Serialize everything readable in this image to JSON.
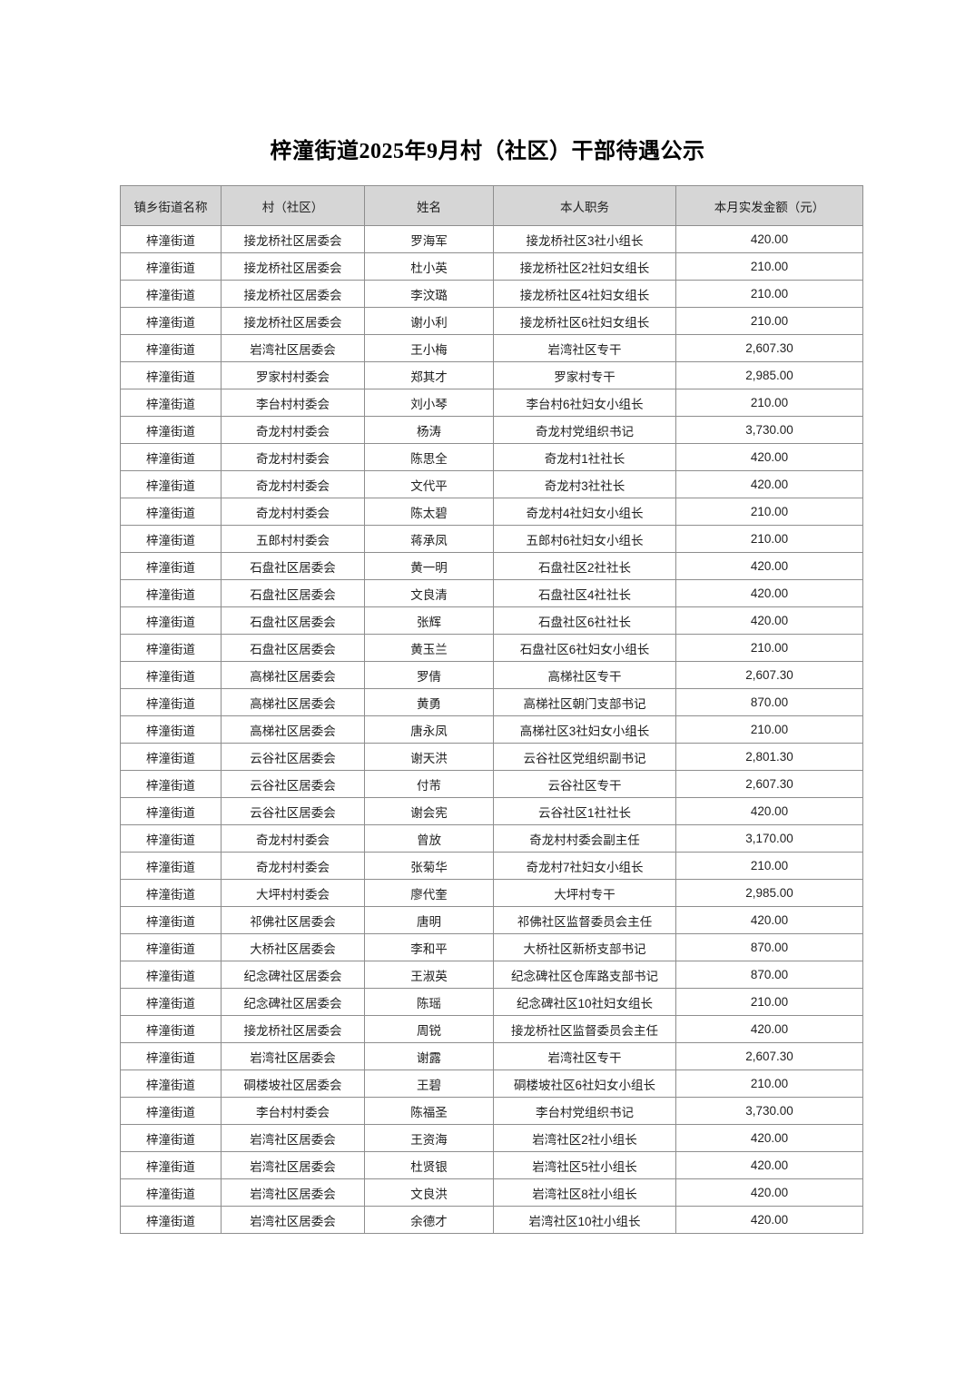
{
  "page": {
    "title": "梓潼街道2025年9月村（社区）干部待遇公示"
  },
  "colors": {
    "header_bg": "#d6d6d6",
    "border": "#8e8e8e",
    "text": "#1f1f1f",
    "page_bg": "#ffffff"
  },
  "table": {
    "headers": [
      "镇乡街道名称",
      "村（社区）",
      "姓名",
      "本人职务",
      "本月实发金额（元）"
    ],
    "rows": [
      [
        "梓潼街道",
        "接龙桥社区居委会",
        "罗海军",
        "接龙桥社区3社小组长",
        "420.00"
      ],
      [
        "梓潼街道",
        "接龙桥社区居委会",
        "杜小英",
        "接龙桥社区2社妇女组长",
        "210.00"
      ],
      [
        "梓潼街道",
        "接龙桥社区居委会",
        "李汶璐",
        "接龙桥社区4社妇女组长",
        "210.00"
      ],
      [
        "梓潼街道",
        "接龙桥社区居委会",
        "谢小利",
        "接龙桥社区6社妇女组长",
        "210.00"
      ],
      [
        "梓潼街道",
        "岩湾社区居委会",
        "王小梅",
        "岩湾社区专干",
        "2,607.30"
      ],
      [
        "梓潼街道",
        "罗家村村委会",
        "郑其才",
        "罗家村专干",
        "2,985.00"
      ],
      [
        "梓潼街道",
        "李台村村委会",
        "刘小琴",
        "李台村6社妇女小组长",
        "210.00"
      ],
      [
        "梓潼街道",
        "奇龙村村委会",
        "杨涛",
        "奇龙村党组织书记",
        "3,730.00"
      ],
      [
        "梓潼街道",
        "奇龙村村委会",
        "陈思全",
        "奇龙村1社社长",
        "420.00"
      ],
      [
        "梓潼街道",
        "奇龙村村委会",
        "文代平",
        "奇龙村3社社长",
        "420.00"
      ],
      [
        "梓潼街道",
        "奇龙村村委会",
        "陈太碧",
        "奇龙村4社妇女小组长",
        "210.00"
      ],
      [
        "梓潼街道",
        "五郎村村委会",
        "蒋承凤",
        "五郎村6社妇女小组长",
        "210.00"
      ],
      [
        "梓潼街道",
        "石盘社区居委会",
        "黄一明",
        "石盘社区2社社长",
        "420.00"
      ],
      [
        "梓潼街道",
        "石盘社区居委会",
        "文良清",
        "石盘社区4社社长",
        "420.00"
      ],
      [
        "梓潼街道",
        "石盘社区居委会",
        "张辉",
        "石盘社区6社社长",
        "420.00"
      ],
      [
        "梓潼街道",
        "石盘社区居委会",
        "黄玉兰",
        "石盘社区6社妇女小组长",
        "210.00"
      ],
      [
        "梓潼街道",
        "高梯社区居委会",
        "罗倩",
        "高梯社区专干",
        "2,607.30"
      ],
      [
        "梓潼街道",
        "高梯社区居委会",
        "黄勇",
        "高梯社区朝门支部书记",
        "870.00"
      ],
      [
        "梓潼街道",
        "高梯社区居委会",
        "唐永凤",
        "高梯社区3社妇女小组长",
        "210.00"
      ],
      [
        "梓潼街道",
        "云谷社区居委会",
        "谢天洪",
        "云谷社区党组织副书记",
        "2,801.30"
      ],
      [
        "梓潼街道",
        "云谷社区居委会",
        "付芾",
        "云谷社区专干",
        "2,607.30"
      ],
      [
        "梓潼街道",
        "云谷社区居委会",
        "谢会宪",
        "云谷社区1社社长",
        "420.00"
      ],
      [
        "梓潼街道",
        "奇龙村村委会",
        "曾放",
        "奇龙村村委会副主任",
        "3,170.00"
      ],
      [
        "梓潼街道",
        "奇龙村村委会",
        "张菊华",
        "奇龙村7社妇女小组长",
        "210.00"
      ],
      [
        "梓潼街道",
        "大坪村村委会",
        "廖代奎",
        "大坪村专干",
        "2,985.00"
      ],
      [
        "梓潼街道",
        "祁佛社区居委会",
        "唐明",
        "祁佛社区监督委员会主任",
        "420.00"
      ],
      [
        "梓潼街道",
        "大桥社区居委会",
        "李和平",
        "大桥社区新桥支部书记",
        "870.00"
      ],
      [
        "梓潼街道",
        "纪念碑社区居委会",
        "王淑英",
        "纪念碑社区仓库路支部书记",
        "870.00"
      ],
      [
        "梓潼街道",
        "纪念碑社区居委会",
        "陈瑶",
        "纪念碑社区10社妇女组长",
        "210.00"
      ],
      [
        "梓潼街道",
        "接龙桥社区居委会",
        "周锐",
        "接龙桥社区监督委员会主任",
        "420.00"
      ],
      [
        "梓潼街道",
        "岩湾社区居委会",
        "谢露",
        "岩湾社区专干",
        "2,607.30"
      ],
      [
        "梓潼街道",
        "硐楼坡社区居委会",
        "王碧",
        "硐楼坡社区6社妇女小组长",
        "210.00"
      ],
      [
        "梓潼街道",
        "李台村村委会",
        "陈福圣",
        "李台村党组织书记",
        "3,730.00"
      ],
      [
        "梓潼街道",
        "岩湾社区居委会",
        "王资海",
        "岩湾社区2社小组长",
        "420.00"
      ],
      [
        "梓潼街道",
        "岩湾社区居委会",
        "杜贤银",
        "岩湾社区5社小组长",
        "420.00"
      ],
      [
        "梓潼街道",
        "岩湾社区居委会",
        "文良洪",
        "岩湾社区8社小组长",
        "420.00"
      ],
      [
        "梓潼街道",
        "岩湾社区居委会",
        "余德才",
        "岩湾社区10社小组长",
        "420.00"
      ]
    ]
  }
}
